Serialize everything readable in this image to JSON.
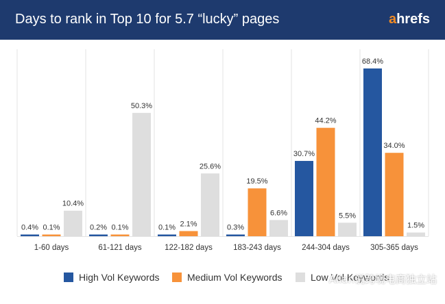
{
  "header": {
    "title": "Days to rank in Top 10 for 5.7 “lucky” pages",
    "logo_first": "a",
    "logo_rest": "hrefs"
  },
  "colors": {
    "header_bg": "#1e3a6e",
    "high": "#2557a0",
    "medium": "#f7923a",
    "low": "#dedede",
    "logo_accent": "#f08a24"
  },
  "chart_data": {
    "type": "bar",
    "title": "Days to rank in Top 10 for 5.7 “lucky” pages",
    "categories": [
      "1-60 days",
      "61-121 days",
      "122-182 days",
      "183-243 days",
      "244-304 days",
      "305-365 days"
    ],
    "series": [
      {
        "name": "High Vol Keywords",
        "values": [
          0.4,
          0.2,
          0.1,
          0.3,
          30.7,
          68.4
        ],
        "labels": [
          "0.4%",
          "0.2%",
          "0.1%",
          "0.3%",
          "30.7%",
          "68.4%"
        ]
      },
      {
        "name": "Medium Vol Keywords",
        "values": [
          0.1,
          0.1,
          2.1,
          19.5,
          44.2,
          34.0
        ],
        "labels": [
          "0.1%",
          "0.1%",
          "2.1%",
          "19.5%",
          "44.2%",
          "34.0%"
        ]
      },
      {
        "name": "Low Vol Keywords",
        "values": [
          10.4,
          50.3,
          25.6,
          6.6,
          5.5,
          1.5
        ],
        "labels": [
          "10.4%",
          "50.3%",
          "25.6%",
          "6.6%",
          "5.5%",
          "1.5%"
        ]
      }
    ],
    "ylim": [
      0,
      68.4
    ],
    "grid": "vertical-separators",
    "legend": "bottom"
  },
  "watermark": "Allan说跨境电商独立站"
}
